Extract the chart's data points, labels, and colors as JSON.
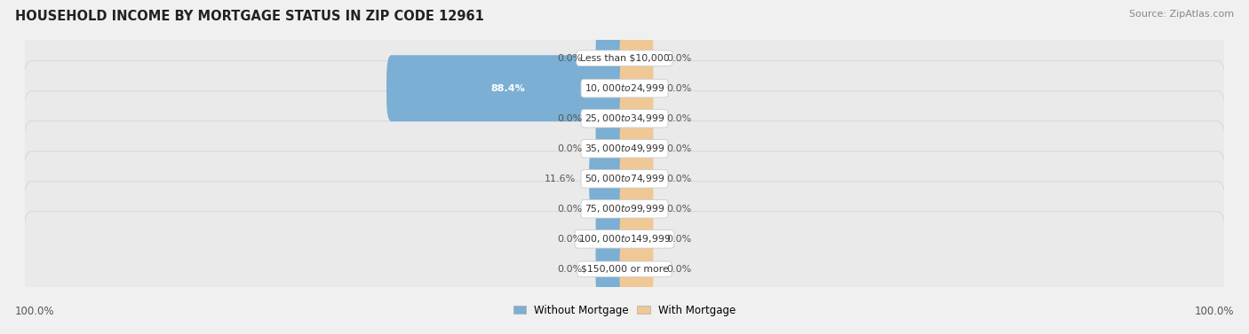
{
  "title": "HOUSEHOLD INCOME BY MORTGAGE STATUS IN ZIP CODE 12961",
  "source": "Source: ZipAtlas.com",
  "categories": [
    "Less than $10,000",
    "$10,000 to $24,999",
    "$25,000 to $34,999",
    "$35,000 to $49,999",
    "$50,000 to $74,999",
    "$75,000 to $99,999",
    "$100,000 to $149,999",
    "$150,000 or more"
  ],
  "without_mortgage": [
    0.0,
    88.4,
    0.0,
    0.0,
    11.6,
    0.0,
    0.0,
    0.0
  ],
  "with_mortgage": [
    0.0,
    0.0,
    0.0,
    0.0,
    0.0,
    0.0,
    0.0,
    0.0
  ],
  "without_mortgage_color": "#7bafd4",
  "with_mortgage_color": "#f0c896",
  "bg_color": "#f0f0f0",
  "row_bg_color": "#eaeaea",
  "row_border_color": "#d0d0d0",
  "label_left_100": "100.0%",
  "label_right_100": "100.0%",
  "legend_without": "Without Mortgage",
  "legend_with": "With Mortgage",
  "stub_size": 4.0,
  "max_scale": 100.0,
  "bar_max_half": 44.0
}
